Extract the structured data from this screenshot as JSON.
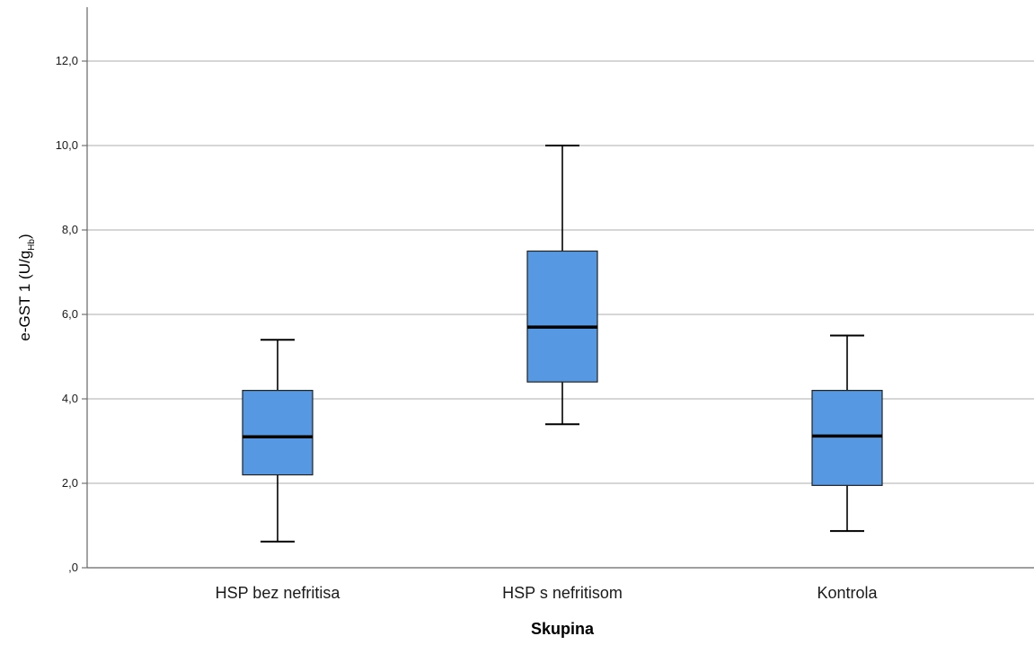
{
  "chart_data": {
    "type": "boxplot",
    "xlabel": "Skupina",
    "ylabel": {
      "main": "e-GST 1 (U/g",
      "subscript": "Hb",
      "suffix": ")"
    },
    "ylim": [
      0,
      13
    ],
    "yticks": [
      {
        "value": 0,
        "label": ",0"
      },
      {
        "value": 2,
        "label": "2,0"
      },
      {
        "value": 4,
        "label": "4,0"
      },
      {
        "value": 6,
        "label": "6,0"
      },
      {
        "value": 8,
        "label": "8,0"
      },
      {
        "value": 10,
        "label": "10,0"
      },
      {
        "value": 12,
        "label": "12,0"
      }
    ],
    "grid": true,
    "box_color": "#5699e2",
    "box_edge_color": "#222222",
    "grid_color": "#c8c8c8",
    "categories": [
      "HSP bez nefritisa",
      "HSP s nefritisom",
      "Kontrola"
    ],
    "boxes": [
      {
        "category": "HSP bez nefritisa",
        "min": 0.62,
        "q1": 2.2,
        "median": 3.1,
        "q3": 4.2,
        "max": 5.4
      },
      {
        "category": "HSP s nefritisom",
        "min": 3.4,
        "q1": 4.4,
        "median": 5.7,
        "q3": 7.5,
        "max": 10.0
      },
      {
        "category": "Kontrola",
        "min": 0.87,
        "q1": 1.95,
        "median": 3.12,
        "q3": 4.2,
        "max": 5.5
      }
    ]
  }
}
